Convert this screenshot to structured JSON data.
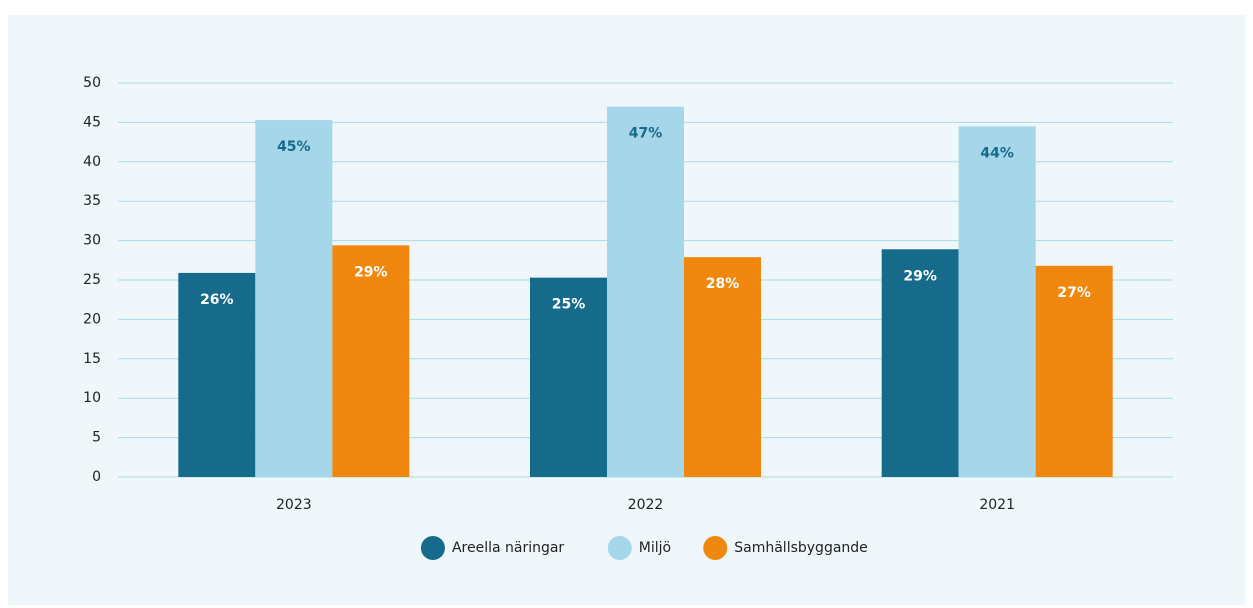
{
  "chart_data": {
    "type": "bar",
    "categories": [
      "2023",
      "2022",
      "2021"
    ],
    "series": [
      {
        "name": "Areella näringar",
        "color": "#166a8a",
        "values": [
          25.9,
          25.3,
          28.9
        ],
        "value_labels": [
          "26%",
          "25%",
          "29%"
        ],
        "label_color": "#ffffff"
      },
      {
        "name": "Miljö",
        "color": "#a6d6ea",
        "values": [
          45.3,
          47.0,
          44.5
        ],
        "value_labels": [
          "45%",
          "47%",
          "44%"
        ],
        "label_color": "#166a8a"
      },
      {
        "name": "Samhällsbyggande",
        "color": "#f0870e",
        "values": [
          29.4,
          27.9,
          26.8
        ],
        "value_labels": [
          "29%",
          "28%",
          "27%"
        ],
        "label_color": "#ffffff"
      }
    ],
    "ylim": [
      0,
      50
    ],
    "yticks": [
      0,
      5,
      10,
      15,
      20,
      25,
      30,
      35,
      40,
      45,
      50
    ],
    "grid": true
  }
}
